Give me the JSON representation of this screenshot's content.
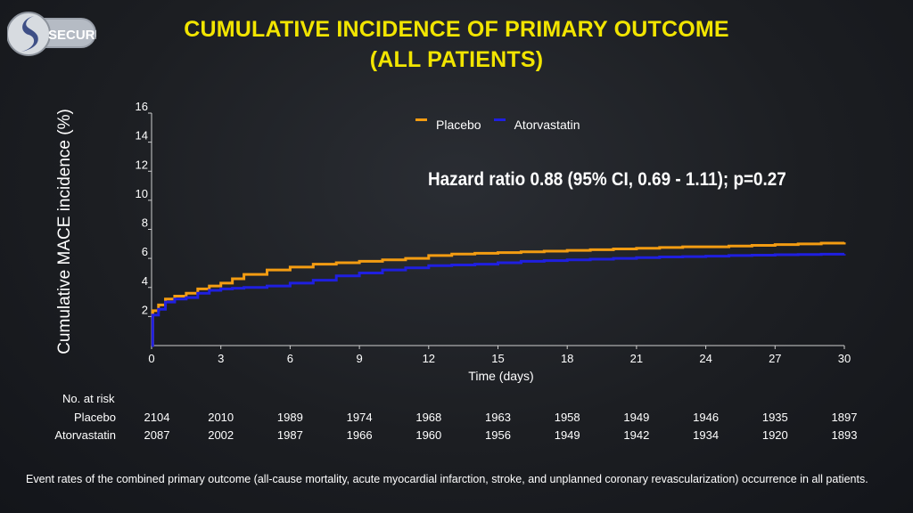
{
  "logo": {
    "text": "SECURE"
  },
  "title": {
    "line1": "CUMULATIVE INCIDENCE OF PRIMARY OUTCOME",
    "line2": "(ALL PATIENTS)"
  },
  "annotation": "Hazard ratio 0.88 (95% CI, 0.69 - 1.11); p=0.27",
  "colors": {
    "placebo": "#f39c12",
    "atorvastatin": "#1f1fe0",
    "axis": "#cfcfcf",
    "title": "#f2e500"
  },
  "chart_data": {
    "type": "line",
    "title": "CUMULATIVE INCIDENCE OF PRIMARY OUTCOME (ALL PATIENTS)",
    "xlabel": "Time (days)",
    "ylabel": "Cumulative MACE incidence (%)",
    "xlim": [
      0,
      30
    ],
    "ylim": [
      0,
      16
    ],
    "xticks": [
      0,
      3,
      6,
      9,
      12,
      15,
      18,
      21,
      24,
      27,
      30
    ],
    "yticks": [
      2,
      4,
      6,
      8,
      10,
      12,
      14,
      16
    ],
    "legend": "top-center",
    "series": [
      {
        "name": "Placebo",
        "x": [
          0,
          0.05,
          0.3,
          0.6,
          1,
          1.5,
          2,
          2.5,
          3,
          3.5,
          4,
          5,
          6,
          7,
          8,
          9,
          10,
          11,
          12,
          13,
          14,
          15,
          16,
          17,
          18,
          19,
          20,
          21,
          22,
          23,
          24,
          25,
          26,
          27,
          28,
          29,
          30
        ],
        "y": [
          0,
          2.4,
          2.8,
          3.2,
          3.4,
          3.6,
          3.9,
          4.1,
          4.3,
          4.6,
          4.9,
          5.2,
          5.4,
          5.6,
          5.7,
          5.8,
          5.9,
          6.0,
          6.2,
          6.3,
          6.35,
          6.4,
          6.45,
          6.5,
          6.55,
          6.6,
          6.65,
          6.7,
          6.75,
          6.8,
          6.8,
          6.85,
          6.9,
          6.95,
          7.0,
          7.05,
          7.1
        ]
      },
      {
        "name": "Atorvastatin",
        "x": [
          0,
          0.05,
          0.3,
          0.6,
          1,
          1.5,
          2,
          2.5,
          3,
          3.5,
          4,
          5,
          6,
          7,
          8,
          9,
          10,
          11,
          12,
          13,
          14,
          15,
          16,
          17,
          18,
          19,
          20,
          21,
          22,
          23,
          24,
          25,
          26,
          27,
          28,
          29,
          30
        ],
        "y": [
          0,
          2.1,
          2.5,
          3.0,
          3.2,
          3.3,
          3.6,
          3.8,
          3.9,
          3.95,
          4.0,
          4.1,
          4.3,
          4.5,
          4.8,
          5.0,
          5.2,
          5.35,
          5.5,
          5.55,
          5.6,
          5.7,
          5.8,
          5.85,
          5.9,
          5.95,
          6.0,
          6.05,
          6.1,
          6.12,
          6.15,
          6.2,
          6.22,
          6.25,
          6.27,
          6.29,
          6.3
        ]
      }
    ]
  },
  "risk_table": {
    "heading": "No. at risk",
    "rows": [
      {
        "label": "Placebo",
        "values": [
          "2104",
          "2010",
          "1989",
          "1974",
          "1968",
          "1963",
          "1958",
          "1949",
          "1946",
          "1935",
          "1897"
        ]
      },
      {
        "label": "Atorvastatin",
        "values": [
          "2087",
          "2002",
          "1987",
          "1966",
          "1960",
          "1956",
          "1949",
          "1942",
          "1934",
          "1920",
          "1893"
        ]
      }
    ]
  },
  "footnote": "Event rates of the combined primary outcome (all-cause mortality, acute myocardial infarction, stroke, and unplanned coronary revascularization) occurrence in all patients."
}
